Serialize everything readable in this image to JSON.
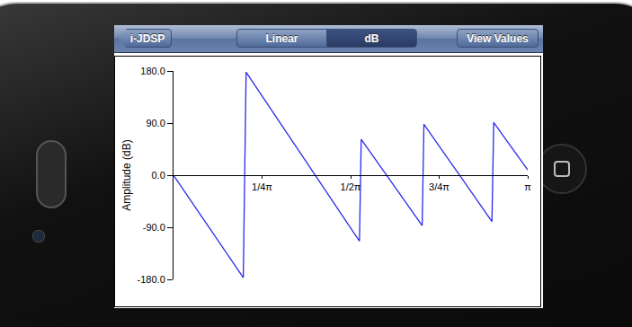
{
  "app": {
    "back_button": "i-JDSP",
    "segments": [
      "Linear",
      "dB"
    ],
    "selected_segment": "dB",
    "right_button": "View Values"
  },
  "chart_data": {
    "type": "line",
    "y_label": "Amplitude (dB)",
    "x": [
      0,
      0.197,
      0.205,
      0.525,
      0.53,
      0.702,
      0.707,
      0.899,
      0.904,
      1.0
    ],
    "values": [
      0,
      -177,
      178,
      -114,
      62,
      -87,
      88,
      -80,
      91,
      9
    ],
    "color": "#2a2aee",
    "xlim": [
      0,
      1
    ],
    "xticks": [
      {
        "value": 0.25,
        "label": "1/4π"
      },
      {
        "value": 0.5,
        "label": "1/2π"
      },
      {
        "value": 0.75,
        "label": "3/4π"
      },
      {
        "value": 1,
        "label": "π"
      }
    ],
    "ylim": [
      -180,
      180
    ],
    "yticks": [
      {
        "value": -180,
        "label": "-180.0"
      },
      {
        "value": -90,
        "label": "-90.0"
      },
      {
        "value": 0,
        "label": "0.0"
      },
      {
        "value": 90,
        "label": "90.0"
      },
      {
        "value": 180,
        "label": "180.0"
      }
    ],
    "grid": false
  }
}
